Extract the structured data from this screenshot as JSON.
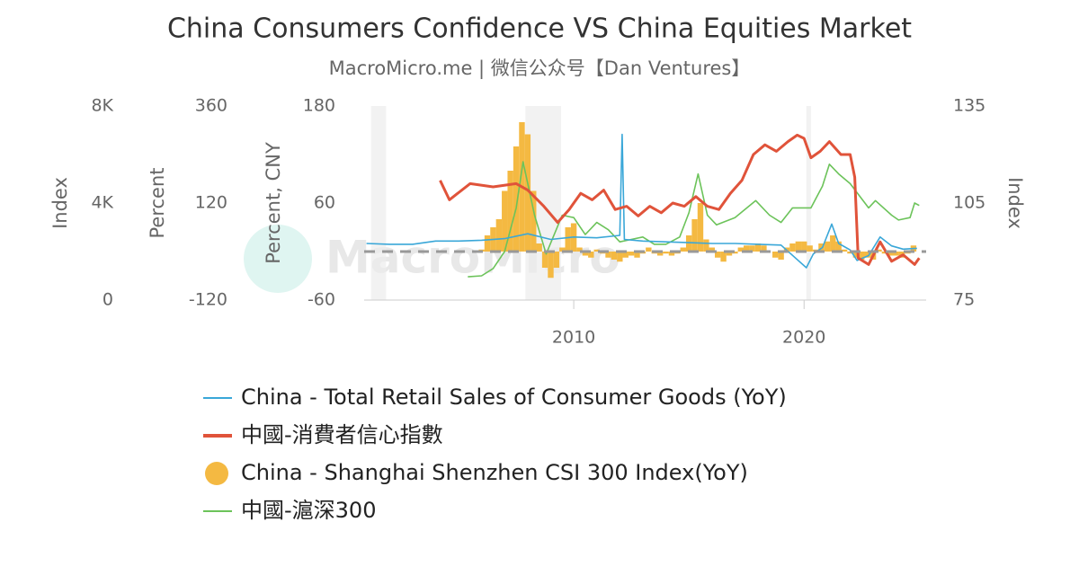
{
  "chart_data": {
    "type": "line",
    "title": "China Consumers Confidence VS China Equities Market",
    "subtitle": "MacroMicro.me | 微信公众号【Dan Ventures】",
    "watermark": "MacroMicro",
    "xlim": [
      2000.9,
      2025.3
    ],
    "xticks": [
      2010,
      2020
    ],
    "axes": [
      {
        "title": "Index",
        "side": "left",
        "lim": [
          0,
          8000
        ],
        "ticks": [
          0,
          {
            "value": 4000,
            "label": "4K"
          },
          {
            "value": 8000,
            "label": "8K"
          }
        ]
      },
      {
        "title": "Percent",
        "side": "left",
        "lim": [
          -120,
          360
        ],
        "ticks": [
          -120,
          120,
          360
        ]
      },
      {
        "title": "Percent, CNY",
        "side": "left",
        "lim": [
          -60,
          180
        ],
        "ticks": [
          -60,
          60,
          180
        ]
      },
      {
        "title": "Index",
        "side": "right",
        "lim": [
          75,
          135
        ],
        "ticks": [
          75,
          105,
          135
        ]
      }
    ],
    "shaded_periods": [
      [
        2001.2,
        2001.85
      ],
      [
        2007.9,
        2009.45
      ],
      [
        2020.1,
        2020.3
      ]
    ],
    "reference_line": {
      "axis": 1,
      "value": 0
    },
    "series": [
      {
        "name": "China - Total Retail Sales of Consumer Goods (YoY)",
        "type": "line",
        "axis": 2,
        "color": "#3aa7d8",
        "x": [
          2001,
          2002,
          2003,
          2004,
          2005,
          2006,
          2007,
          2008,
          2009,
          2010,
          2011,
          2012.0,
          2012.1,
          2012.2,
          2013,
          2014,
          2015,
          2016,
          2017,
          2018,
          2019,
          2020.1,
          2020.4,
          2020.8,
          2021.2,
          2021.5,
          2022.0,
          2022.3,
          2022.8,
          2023.3,
          2023.8,
          2024.3,
          2024.9
        ],
        "values": [
          10,
          9,
          9,
          13,
          13,
          14,
          16,
          22,
          15,
          18,
          17,
          20,
          145,
          15,
          13,
          12,
          11,
          10,
          10,
          9,
          8,
          -20,
          -3,
          5,
          34,
          10,
          2,
          -11,
          -5,
          18,
          7,
          3,
          4
        ]
      },
      {
        "name": "中國-消費者信心指數",
        "type": "line",
        "axis": 3,
        "color": "#e0533a",
        "x": [
          2004.2,
          2004.6,
          2005.5,
          2006.5,
          2007.5,
          2008.0,
          2008.7,
          2009.3,
          2009.8,
          2010.3,
          2010.8,
          2011.3,
          2011.8,
          2012.3,
          2012.8,
          2013.3,
          2013.8,
          2014.3,
          2014.8,
          2015.3,
          2015.8,
          2016.3,
          2016.8,
          2017.3,
          2017.8,
          2018.3,
          2018.8,
          2019.3,
          2019.7,
          2020.0,
          2020.3,
          2020.7,
          2021.1,
          2021.6,
          2022.0,
          2022.2,
          2022.35,
          2022.8,
          2023.3,
          2023.8,
          2024.3,
          2024.8,
          2025.0
        ],
        "values": [
          112,
          106,
          111,
          110,
          111,
          109,
          104,
          99,
          103,
          108,
          106,
          109,
          103,
          104,
          101,
          104,
          102,
          105,
          104,
          107,
          104,
          103,
          108,
          112,
          120,
          123,
          121,
          124,
          126,
          125,
          119,
          121,
          124,
          120,
          120,
          113,
          88,
          86,
          93,
          87,
          89,
          86,
          88
        ]
      },
      {
        "name": "China - Shanghai Shenzhen CSI 300 Index(YoY)",
        "type": "bar",
        "axis": 1,
        "color": "#f4b942",
        "x": [
          2006.0,
          2006.25,
          2006.5,
          2006.75,
          2007.0,
          2007.25,
          2007.5,
          2007.75,
          2008.0,
          2008.25,
          2008.5,
          2008.75,
          2009.0,
          2009.25,
          2009.5,
          2009.75,
          2010.0,
          2010.25,
          2010.5,
          2010.75,
          2011.0,
          2011.25,
          2011.5,
          2011.75,
          2012.0,
          2012.25,
          2012.5,
          2012.75,
          2013.0,
          2013.25,
          2013.5,
          2013.75,
          2014.0,
          2014.25,
          2014.5,
          2014.75,
          2015.0,
          2015.25,
          2015.5,
          2015.75,
          2016.0,
          2016.25,
          2016.5,
          2016.75,
          2017.0,
          2017.25,
          2017.5,
          2017.75,
          2018.0,
          2018.25,
          2018.5,
          2018.75,
          2019.0,
          2019.25,
          2019.5,
          2019.75,
          2020.0,
          2020.25,
          2020.5,
          2020.75,
          2021.0,
          2021.25,
          2021.5,
          2021.75,
          2022.0,
          2022.25,
          2022.5,
          2022.75,
          2023.0,
          2023.25,
          2023.5,
          2023.75,
          2024.0,
          2024.25,
          2024.5,
          2024.75
        ],
        "values": [
          5,
          40,
          60,
          80,
          150,
          200,
          260,
          320,
          290,
          150,
          20,
          -40,
          -65,
          -40,
          10,
          60,
          70,
          10,
          -10,
          -15,
          5,
          -5,
          -15,
          -20,
          -25,
          -15,
          -10,
          -15,
          -5,
          10,
          -5,
          -10,
          -5,
          -10,
          -5,
          10,
          40,
          80,
          120,
          30,
          10,
          -15,
          -25,
          -10,
          -5,
          10,
          15,
          15,
          20,
          15,
          0,
          -15,
          -20,
          10,
          20,
          25,
          25,
          15,
          5,
          20,
          25,
          40,
          25,
          5,
          -5,
          -15,
          -20,
          -15,
          -20,
          5,
          -5,
          -10,
          -10,
          -15,
          -5,
          15
        ]
      },
      {
        "name": "中國-滬深300",
        "type": "line",
        "axis": 0,
        "color": "#6cc35a",
        "x": [
          2005.4,
          2006.0,
          2006.5,
          2007.0,
          2007.5,
          2007.8,
          2008.3,
          2008.8,
          2009.5,
          2010.0,
          2010.5,
          2011.0,
          2011.5,
          2012.0,
          2012.5,
          2013.0,
          2013.5,
          2014.0,
          2014.6,
          2015.0,
          2015.4,
          2015.8,
          2016.2,
          2017.0,
          2017.9,
          2018.5,
          2019.0,
          2019.5,
          2020.3,
          2020.8,
          2021.1,
          2021.5,
          2022.0,
          2022.8,
          2023.1,
          2023.8,
          2024.1,
          2024.6,
          2024.8,
          2025.0
        ],
        "values": [
          960,
          1000,
          1300,
          2000,
          3800,
          5700,
          3500,
          1900,
          3500,
          3400,
          2700,
          3200,
          2900,
          2400,
          2500,
          2600,
          2300,
          2300,
          2600,
          3600,
          5200,
          3500,
          3100,
          3400,
          4100,
          3500,
          3200,
          3800,
          3800,
          4700,
          5600,
          5200,
          4800,
          3800,
          4100,
          3500,
          3300,
          3400,
          4000,
          3900
        ]
      }
    ]
  }
}
